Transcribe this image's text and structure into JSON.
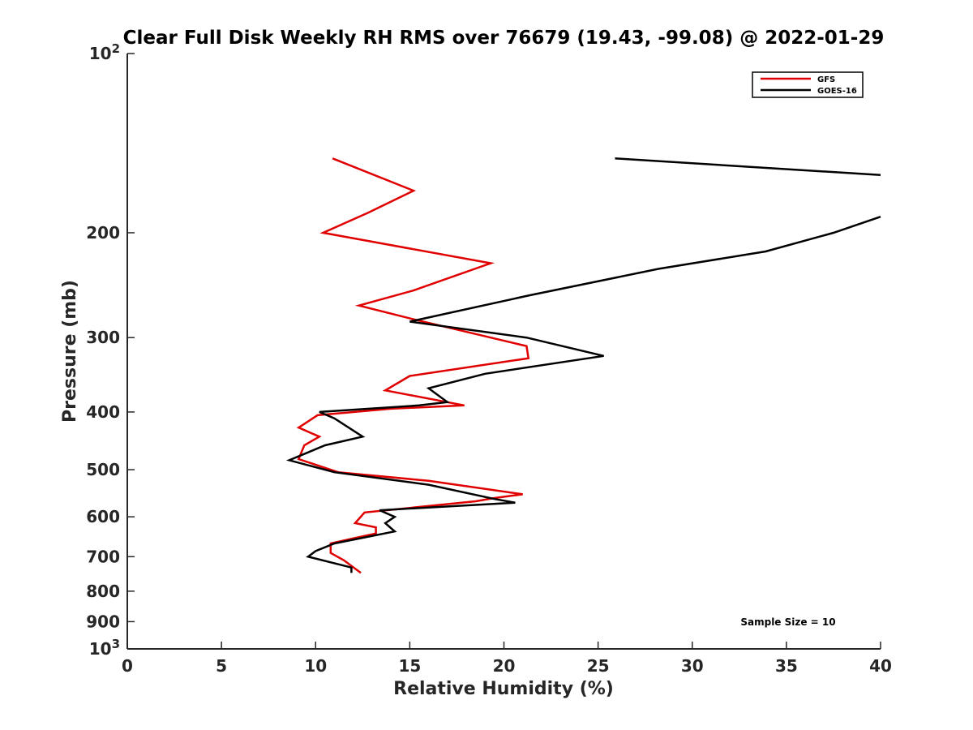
{
  "chart_data": {
    "type": "line",
    "title": "Clear Full Disk Weekly RH RMS over 76679 (19.43, -99.08) @ 2022-01-29",
    "xlabel": "Relative Humidity (%)",
    "ylabel": "Pressure (mb)",
    "xlim": [
      0,
      40
    ],
    "ylim": [
      100,
      1000
    ],
    "y_scale": "log",
    "y_reversed": true,
    "x_ticks": [
      "0",
      "5",
      "10",
      "15",
      "20",
      "25",
      "30",
      "35",
      "40"
    ],
    "y_ticks": [
      {
        "value": 100,
        "base": "10",
        "exp": "2"
      },
      {
        "value": 200,
        "label": "200"
      },
      {
        "value": 300,
        "label": "300"
      },
      {
        "value": 400,
        "label": "400"
      },
      {
        "value": 500,
        "label": "500"
      },
      {
        "value": 600,
        "label": "600"
      },
      {
        "value": 700,
        "label": "700"
      },
      {
        "value": 800,
        "label": "800"
      },
      {
        "value": 900,
        "label": "900"
      },
      {
        "value": 1000,
        "base": "10",
        "exp": "3"
      }
    ],
    "grid": false,
    "legend_position": "top-right",
    "series": [
      {
        "name": "GFS",
        "color": "#e00000",
        "points": [
          [
            10.9,
            150
          ],
          [
            15.2,
            170
          ],
          [
            12.8,
            185
          ],
          [
            10.4,
            200
          ],
          [
            19.3,
            225
          ],
          [
            15.2,
            250
          ],
          [
            12.3,
            265
          ],
          [
            15.3,
            280
          ],
          [
            21.2,
            310
          ],
          [
            21.3,
            325
          ],
          [
            15.0,
            348
          ],
          [
            13.7,
            368
          ],
          [
            17.9,
            390
          ],
          [
            14.0,
            395
          ],
          [
            10.1,
            405
          ],
          [
            9.1,
            425
          ],
          [
            10.2,
            440
          ],
          [
            9.4,
            455
          ],
          [
            9.1,
            480
          ],
          [
            11.2,
            505
          ],
          [
            16.0,
            522
          ],
          [
            21.0,
            550
          ],
          [
            19.5,
            558
          ],
          [
            18.5,
            565
          ],
          [
            12.6,
            590
          ],
          [
            12.1,
            615
          ],
          [
            13.2,
            625
          ],
          [
            13.2,
            640
          ],
          [
            12.2,
            650
          ],
          [
            10.8,
            665
          ],
          [
            10.8,
            690
          ],
          [
            11.5,
            710
          ],
          [
            12.4,
            745
          ]
        ]
      },
      {
        "name": "GOES-16",
        "color": "#000000",
        "points": [
          [
            25.9,
            150
          ],
          [
            40.0,
            160
          ],
          [
            40.0,
            188
          ],
          [
            37.5,
            200
          ],
          [
            33.9,
            215
          ],
          [
            28.2,
            230
          ],
          [
            21.3,
            255
          ],
          [
            15.0,
            282
          ],
          [
            21.2,
            300
          ],
          [
            25.3,
            322
          ],
          [
            19.0,
            345
          ],
          [
            16.0,
            365
          ],
          [
            17.0,
            385
          ],
          [
            15.5,
            390
          ],
          [
            10.2,
            400
          ],
          [
            11.0,
            410
          ],
          [
            12.5,
            440
          ],
          [
            10.5,
            455
          ],
          [
            8.6,
            482
          ],
          [
            11.0,
            505
          ],
          [
            16.0,
            530
          ],
          [
            19.5,
            560
          ],
          [
            20.6,
            568
          ],
          [
            13.4,
            585
          ],
          [
            14.2,
            600
          ],
          [
            13.7,
            615
          ],
          [
            14.2,
            635
          ],
          [
            11.0,
            665
          ],
          [
            10.0,
            685
          ],
          [
            9.6,
            700
          ],
          [
            11.9,
            730
          ],
          [
            11.9,
            745
          ]
        ]
      }
    ],
    "annotation": "Sample Size = 10"
  }
}
